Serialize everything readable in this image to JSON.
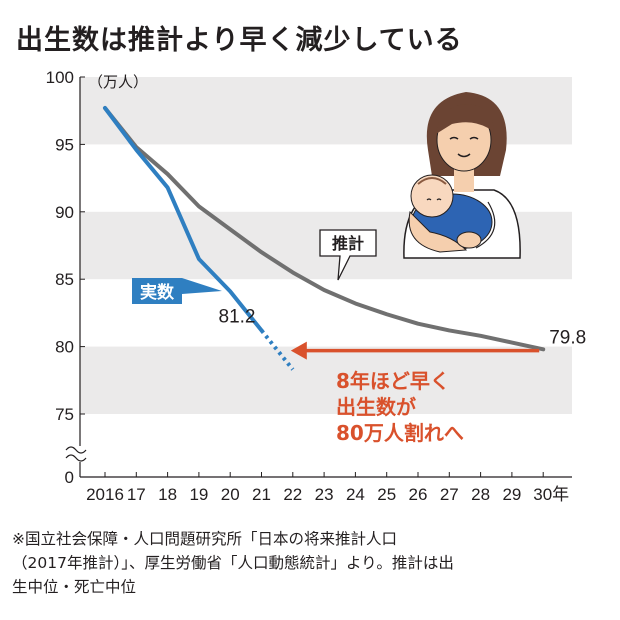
{
  "chart_data": {
    "type": "line",
    "title": "出生数は推計より早く減少している",
    "unit_label": "（万人）",
    "x_tick_labels": [
      "2016",
      "17",
      "18",
      "19",
      "20",
      "21",
      "22",
      "23",
      "24",
      "25",
      "26",
      "27",
      "28",
      "29",
      "30年"
    ],
    "x": [
      2016,
      2017,
      2018,
      2019,
      2020,
      2021,
      2022,
      2023,
      2024,
      2025,
      2026,
      2027,
      2028,
      2029,
      2030
    ],
    "y_ticks": [
      0,
      75,
      80,
      85,
      90,
      95,
      100
    ],
    "ylim": [
      0,
      100
    ],
    "axis_break": true,
    "series": [
      {
        "name": "推計",
        "color": "#707070",
        "x": [
          2016,
          2017,
          2018,
          2019,
          2020,
          2021,
          2022,
          2023,
          2024,
          2025,
          2026,
          2027,
          2028,
          2029,
          2030
        ],
        "values": [
          97.7,
          94.8,
          92.8,
          90.4,
          88.7,
          87.0,
          85.5,
          84.2,
          83.2,
          82.4,
          81.7,
          81.2,
          80.8,
          80.3,
          79.8
        ]
      },
      {
        "name": "実数",
        "color": "#2f7fc1",
        "x": [
          2016,
          2017,
          2018,
          2019,
          2020,
          2021
        ],
        "values": [
          97.7,
          94.6,
          91.8,
          86.5,
          84.1,
          81.2
        ]
      }
    ],
    "projection": {
      "x": [
        2021,
        2022
      ],
      "values": [
        81.2,
        78.3
      ],
      "style": "dotted",
      "color": "#2f7fc1"
    },
    "end_labels": {
      "actual": "81.2",
      "estimate": "79.8"
    },
    "annotations": [
      "8年ほど早く",
      "出生数が",
      "80万人割れへ"
    ],
    "annotation_color": "#d9512c",
    "grid": "alternating-bands",
    "band_color": "#ebeaea"
  },
  "source_lines": [
    "※国立社会保障・人口問題研究所「日本の将来推計人口",
    "（2017年推計）」、厚生労働省「人口動態統計」より。推計は出",
    "生中位・死亡中位"
  ]
}
